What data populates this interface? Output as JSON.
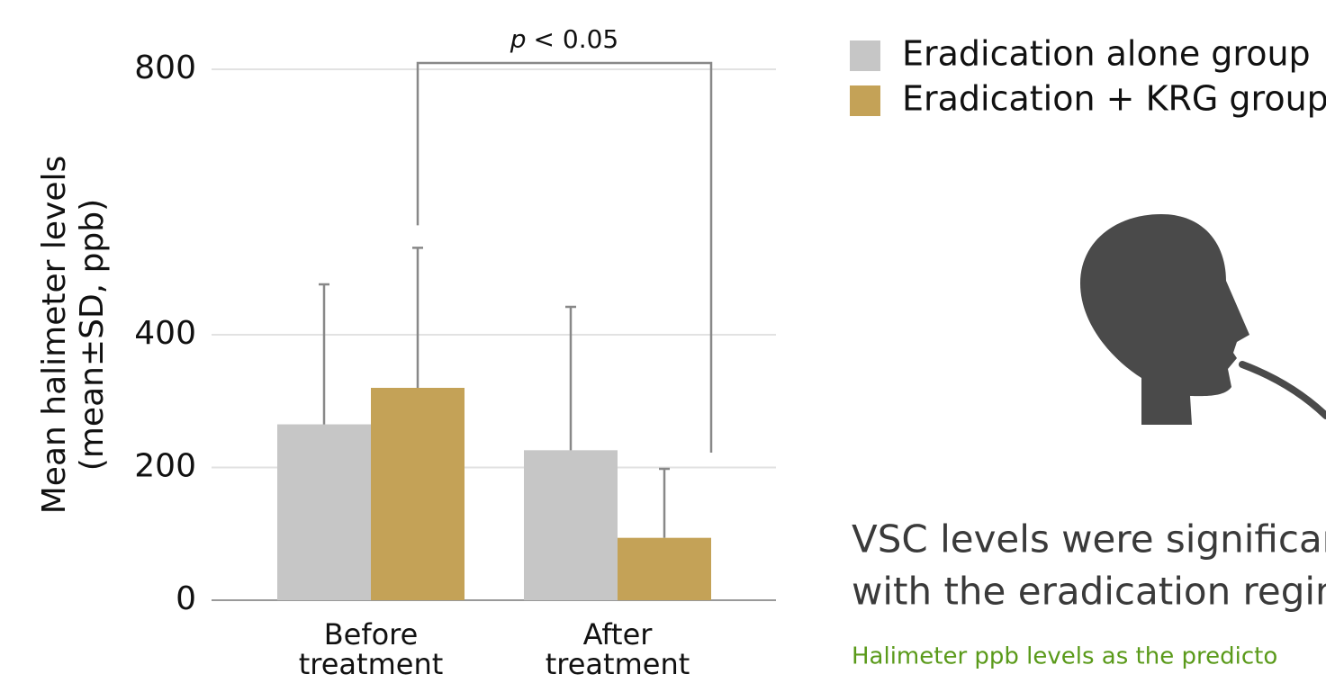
{
  "chart_data": {
    "type": "bar",
    "ylabel": [
      "Mean halimeter levels",
      "(mean±SD, ppb)"
    ],
    "categories": [
      "Before treatment",
      "After treatment"
    ],
    "series": [
      {
        "name": "Eradication alone group",
        "color": "#c6c6c6",
        "values": [
          265,
          226
        ],
        "errors": [
          211,
          216
        ]
      },
      {
        "name": "Eradication + KRG group",
        "color": "#c4a257",
        "values": [
          320,
          94
        ],
        "errors": [
          211,
          104
        ]
      }
    ],
    "ylim": [
      0,
      800
    ],
    "yticks": [
      0,
      200,
      400,
      800
    ],
    "grid": true,
    "annotation": {
      "italic": "p",
      "text": "< 0.05"
    }
  },
  "caption": {
    "headline": [
      "VSC levels were significan",
      "with the eradication regim"
    ],
    "note": "Halimeter ppb levels as the predicto"
  }
}
